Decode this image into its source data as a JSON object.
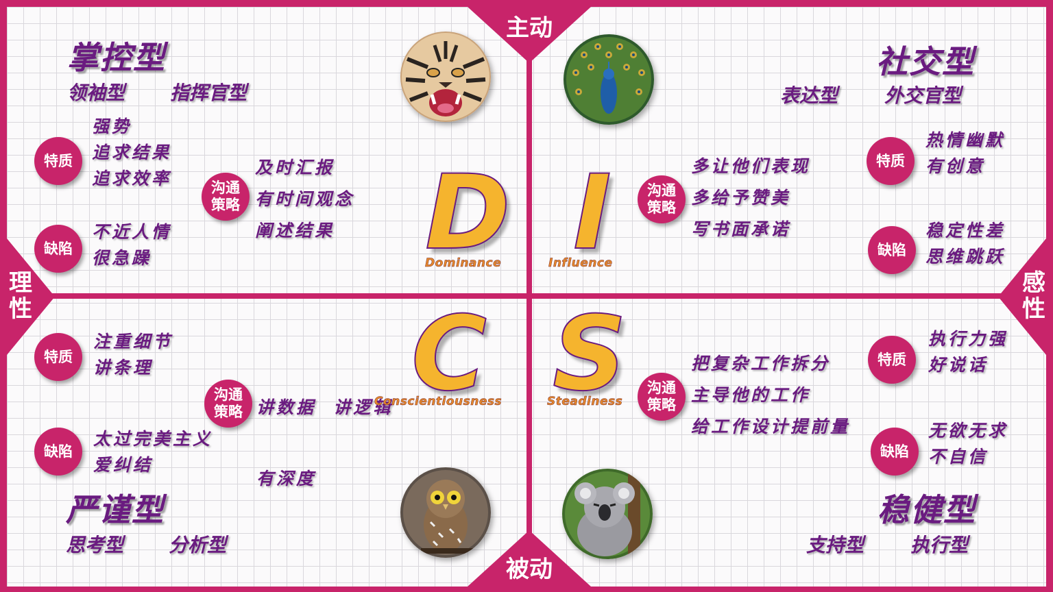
{
  "axes": {
    "top": "主动",
    "bottom": "被动",
    "left": "理性",
    "right": "感性"
  },
  "quadrants": {
    "D": {
      "letter": "D",
      "english": "Dominance",
      "animal": "tiger-icon",
      "title": "掌控型",
      "aliases": [
        "领袖型",
        "指挥官型"
      ],
      "traits_label": "特质",
      "traits": [
        "强势",
        "追求结果",
        "追求效率"
      ],
      "defects_label": "缺陷",
      "defects": [
        "不近人情",
        "很急躁"
      ],
      "strategy_label": "沟通策略",
      "strategy": [
        "及时汇报",
        "有时间观念",
        "阐述结果"
      ]
    },
    "I": {
      "letter": "I",
      "english": "Influence",
      "animal": "peacock-icon",
      "title": "社交型",
      "aliases": [
        "表达型",
        "外交官型"
      ],
      "traits_label": "特质",
      "traits": [
        "热情幽默",
        "有创意"
      ],
      "defects_label": "缺陷",
      "defects": [
        "稳定性差",
        "思维跳跃"
      ],
      "strategy_label": "沟通策略",
      "strategy": [
        "多让他们表现",
        "多给予赞美",
        "写书面承诺"
      ]
    },
    "C": {
      "letter": "C",
      "english": "Conscientiousness",
      "animal": "owl-icon",
      "title": "严谨型",
      "aliases": [
        "思考型",
        "分析型"
      ],
      "traits_label": "特质",
      "traits": [
        "注重细节",
        "讲条理"
      ],
      "defects_label": "缺陷",
      "defects": [
        "太过完美主义",
        "爱纠结"
      ],
      "strategy_label": "沟通策略",
      "strategy": [
        "讲数据  讲逻辑",
        "有深度"
      ]
    },
    "S": {
      "letter": "S",
      "english": "Steadiness",
      "animal": "koala-icon",
      "title": "稳健型",
      "aliases": [
        "支持型",
        "执行型"
      ],
      "traits_label": "特质",
      "traits": [
        "执行力强",
        "好说话"
      ],
      "defects_label": "缺陷",
      "defects": [
        "无欲无求",
        "不自信"
      ],
      "strategy_label": "沟通策略",
      "strategy": [
        "把复杂工作拆分",
        "主导他的工作",
        "给工作设计提前量"
      ]
    }
  }
}
